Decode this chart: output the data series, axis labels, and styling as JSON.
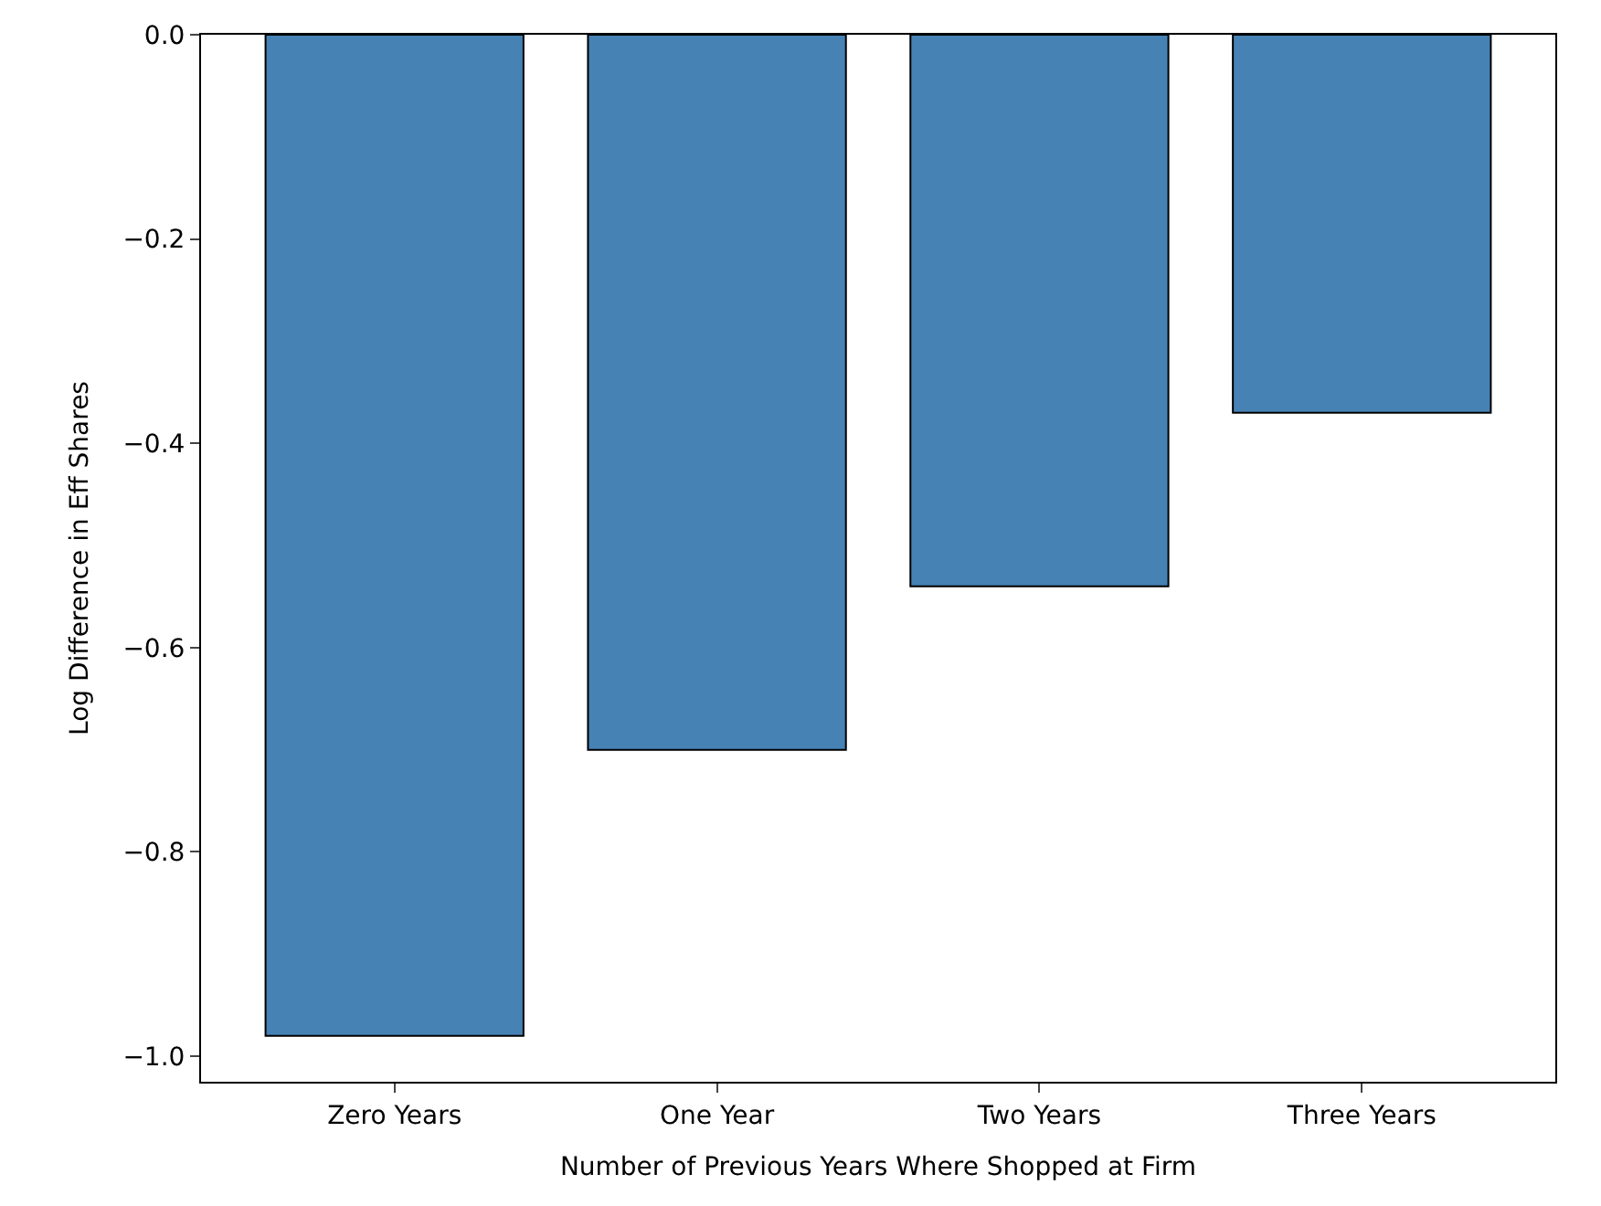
{
  "chart_data": {
    "type": "bar",
    "xlabel": "Number of Previous Years Where Shopped at Firm",
    "ylabel": "Log Difference in Eff Shares",
    "categories": [
      "Zero Years",
      "One Year",
      "Two Years",
      "Three Years"
    ],
    "values": [
      -0.98,
      -0.7,
      -0.54,
      -0.37
    ],
    "color": "#4682b4",
    "ylim": [
      -1.025,
      0
    ],
    "yticks": [
      {
        "value": 0,
        "label": "0.0"
      },
      {
        "value": -0.2,
        "label": "−0.2"
      },
      {
        "value": -0.4,
        "label": "−0.4"
      },
      {
        "value": -0.6,
        "label": "−0.6"
      },
      {
        "value": -0.8,
        "label": "−0.8"
      },
      {
        "value": -1.0,
        "label": "−1.0"
      }
    ]
  }
}
